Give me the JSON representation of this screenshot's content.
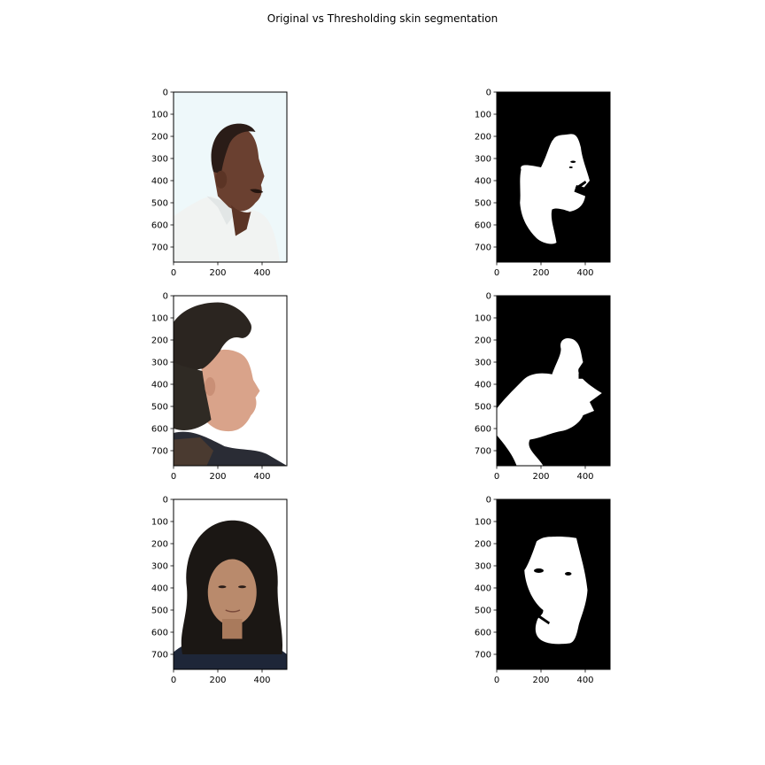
{
  "figure": {
    "title": "Original vs Thresholding skin segmentation"
  },
  "chart_data": {
    "type": "image-grid",
    "title": "Original vs Thresholding skin segmentation",
    "layout": {
      "rows": 3,
      "cols": 2
    },
    "image_width": 512,
    "image_height": 768,
    "xlim": [
      0,
      512
    ],
    "ylim": [
      768,
      0
    ],
    "xticks": [
      0,
      200,
      400
    ],
    "yticks": [
      0,
      100,
      200,
      300,
      400,
      500,
      600,
      700
    ],
    "panels": [
      {
        "row": 0,
        "col": 0,
        "kind": "photo",
        "subject": "man-profile",
        "background": "#eaf6f8"
      },
      {
        "row": 0,
        "col": 1,
        "kind": "mask",
        "subject": "man-profile-mask"
      },
      {
        "row": 1,
        "col": 0,
        "kind": "photo",
        "subject": "man2-profile",
        "background": "#ffffff"
      },
      {
        "row": 1,
        "col": 1,
        "kind": "mask",
        "subject": "man2-profile-mask"
      },
      {
        "row": 2,
        "col": 0,
        "kind": "photo",
        "subject": "woman-front",
        "background": "#ffffff"
      },
      {
        "row": 2,
        "col": 1,
        "kind": "mask",
        "subject": "woman-front-mask"
      }
    ],
    "colors": {
      "mask_background": "#000000",
      "mask_foreground": "#ffffff",
      "axis": "#000000"
    }
  }
}
